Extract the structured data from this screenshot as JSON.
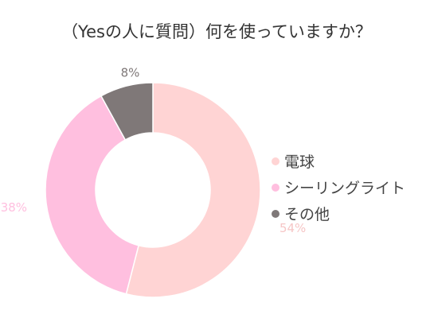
{
  "chart_data": {
    "type": "pie",
    "title": "（Yesの人に質問）何を使っていますか？",
    "slices": [
      {
        "label": "電球",
        "value": 54,
        "value_label": "54%",
        "color": "#ffd4d4"
      },
      {
        "label": "シーリングライト",
        "value": 38,
        "value_label": "38%",
        "color": "#ffbfdf"
      },
      {
        "label": "その他",
        "value": 8,
        "value_label": "8%",
        "color": "#7f7878"
      }
    ],
    "legend": "right",
    "donut": true
  }
}
